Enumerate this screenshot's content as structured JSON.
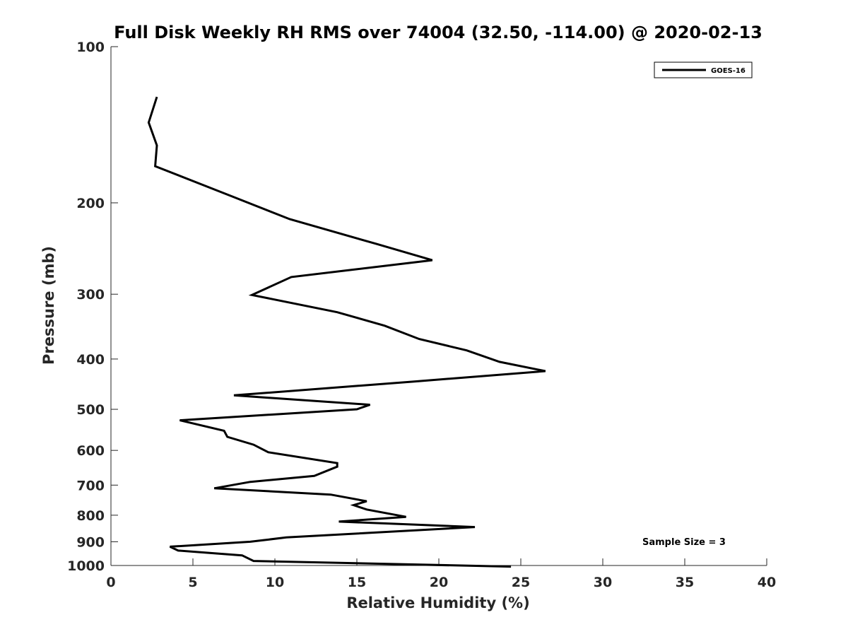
{
  "chart_data": {
    "type": "line",
    "title": "Full Disk Weekly RH RMS over 74004 (32.50, -114.00) @ 2020-02-13",
    "xlabel": "Relative Humidity (%)",
    "ylabel": "Pressure (mb)",
    "xlim": [
      0,
      40
    ],
    "ylim": [
      1000,
      100
    ],
    "yscale": "log",
    "xticks": [
      0,
      5,
      10,
      15,
      20,
      25,
      30,
      35,
      40
    ],
    "yticks": [
      100,
      200,
      300,
      400,
      500,
      600,
      700,
      800,
      900,
      1000
    ],
    "grid": false,
    "legend_position": "top-right",
    "series": [
      {
        "name": "GOES-16",
        "color": "#000000",
        "points": [
          [
            2.8,
            125
          ],
          [
            2.3,
            140
          ],
          [
            2.8,
            155
          ],
          [
            2.7,
            170
          ],
          [
            7.5,
            195
          ],
          [
            10.9,
            215
          ],
          [
            16.2,
            240
          ],
          [
            19.6,
            258
          ],
          [
            11.0,
            278
          ],
          [
            8.6,
            301
          ],
          [
            13.8,
            325
          ],
          [
            16.7,
            345
          ],
          [
            18.8,
            366
          ],
          [
            21.7,
            385
          ],
          [
            23.7,
            405
          ],
          [
            26.5,
            422
          ],
          [
            18.5,
            442
          ],
          [
            7.5,
            470
          ],
          [
            15.8,
            490
          ],
          [
            15.0,
            500
          ],
          [
            4.2,
            525
          ],
          [
            6.9,
            550
          ],
          [
            7.1,
            565
          ],
          [
            8.7,
            585
          ],
          [
            9.6,
            605
          ],
          [
            13.8,
            635
          ],
          [
            13.8,
            645
          ],
          [
            12.4,
            672
          ],
          [
            8.5,
            690
          ],
          [
            6.3,
            710
          ],
          [
            13.4,
            730
          ],
          [
            15.6,
            752
          ],
          [
            14.8,
            765
          ],
          [
            15.6,
            780
          ],
          [
            18.0,
            806
          ],
          [
            13.9,
            823
          ],
          [
            22.2,
            843
          ],
          [
            10.7,
            883
          ],
          [
            8.5,
            900
          ],
          [
            3.6,
            920
          ],
          [
            4.1,
            936
          ],
          [
            8.0,
            956
          ],
          [
            8.7,
            980
          ],
          [
            24.4,
            1005
          ]
        ]
      }
    ],
    "annotation": "Sample Size = 3"
  }
}
